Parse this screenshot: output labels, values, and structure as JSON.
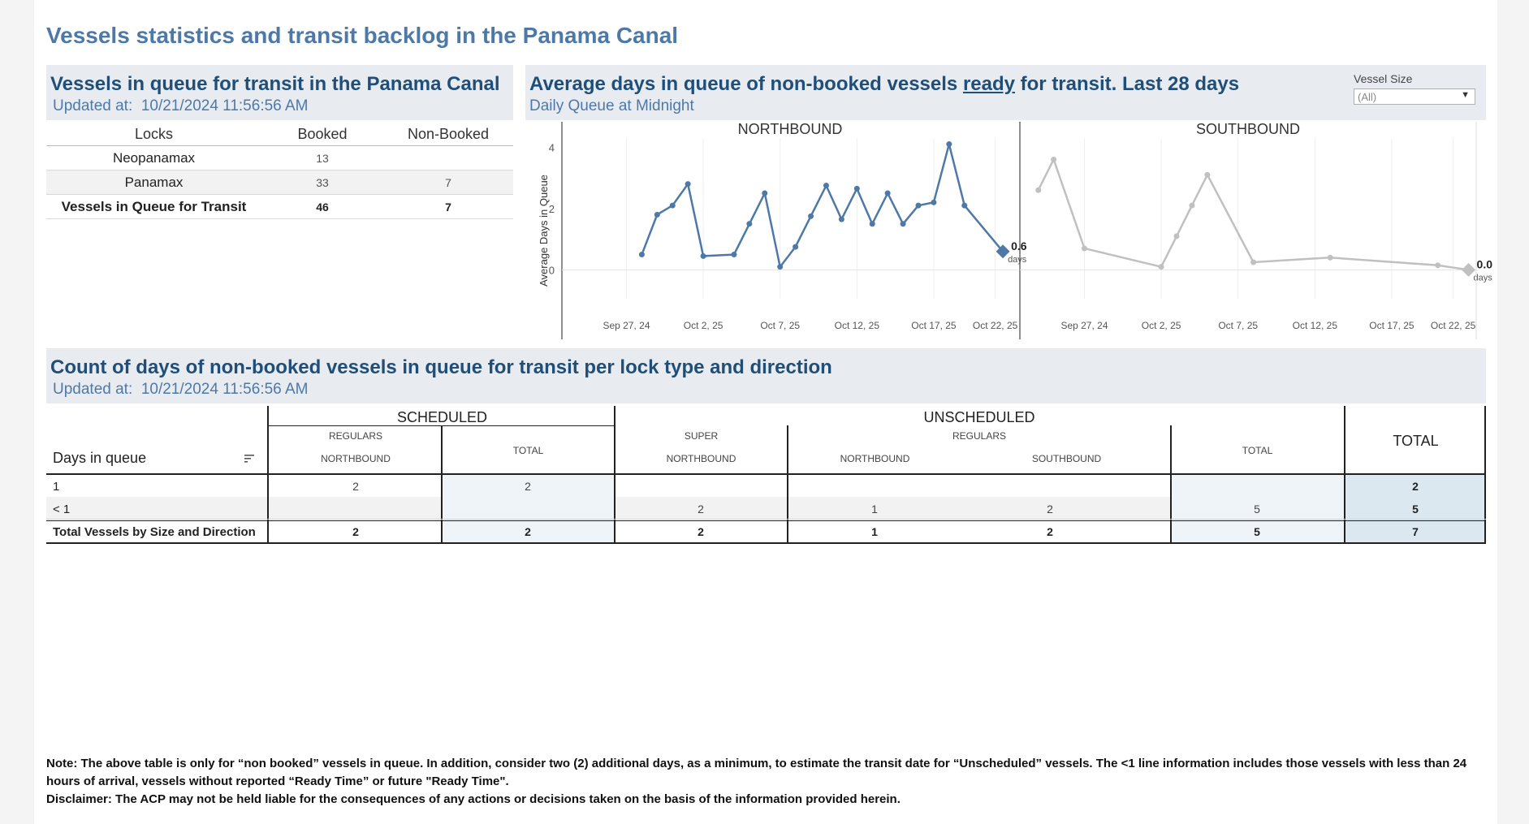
{
  "page_title": "Vessels statistics and transit backlog in the Panama Canal",
  "queue_panel": {
    "title": "Vessels in queue for transit in the Panama Canal",
    "updated_label": "Updated at:",
    "updated_value": "10/21/2024 11:56:56 AM",
    "columns": [
      "Locks",
      "Booked",
      "Non-Booked"
    ],
    "rows": [
      {
        "lock": "Neopanamax",
        "booked": "13",
        "non_booked": ""
      },
      {
        "lock": "Panamax",
        "booked": "33",
        "non_booked": "7"
      }
    ],
    "total": {
      "label": "Vessels in Queue for Transit",
      "booked": "46",
      "non_booked": "7"
    }
  },
  "avg_panel": {
    "title_pre": "Average days in queue of non-booked vessels ",
    "title_link": "ready",
    "title_post": " for transit. Last 28 days",
    "subtitle": "Daily Queue at Midnight"
  },
  "filter": {
    "label": "Vessel Size",
    "value": "(All)",
    "caret": "▼"
  },
  "chart_data": {
    "type": "line",
    "ylabel": "Average Days in Queue",
    "yticks": [
      0,
      2,
      4
    ],
    "ylim": [
      -0.2,
      4.3
    ],
    "xlim": [
      -4.2,
      25.5
    ],
    "xtick_labels": [
      "Sep 27, 24",
      "Oct 2, 25",
      "Oct 7, 25",
      "Oct 12, 25",
      "Oct 17, 25",
      "Oct 22, 25"
    ],
    "xtick_positions": [
      0,
      5,
      10,
      15,
      20,
      24
    ],
    "panels": [
      {
        "name": "NORTHBOUND",
        "color": "#4e79a7",
        "points": [
          [
            1,
            0.5
          ],
          [
            2,
            1.8
          ],
          [
            3,
            2.1
          ],
          [
            4,
            2.8
          ],
          [
            5,
            0.45
          ],
          [
            7,
            0.5
          ],
          [
            8,
            1.5
          ],
          [
            9,
            2.5
          ],
          [
            10,
            0.1
          ],
          [
            11,
            0.75
          ],
          [
            12,
            1.75
          ],
          [
            13,
            2.75
          ],
          [
            14,
            1.65
          ],
          [
            15,
            2.65
          ],
          [
            16,
            1.5
          ],
          [
            17,
            2.5
          ],
          [
            18,
            1.5
          ],
          [
            19,
            2.1
          ],
          [
            20,
            2.2
          ],
          [
            21,
            4.1
          ],
          [
            22,
            2.1
          ],
          [
            24.5,
            0.6
          ]
        ],
        "last_label": "0.6",
        "last_unit": "days"
      },
      {
        "name": "SOUTHBOUND",
        "color": "#c0c0c0",
        "points": [
          [
            -3,
            2.6
          ],
          [
            -2,
            3.6
          ],
          [
            0,
            0.7
          ],
          [
            5,
            0.1
          ],
          [
            6,
            1.1
          ],
          [
            7,
            2.1
          ],
          [
            8,
            3.1
          ],
          [
            11,
            0.25
          ],
          [
            16,
            0.4
          ],
          [
            23,
            0.15
          ],
          [
            25,
            0.0
          ]
        ],
        "last_label": "0.0",
        "last_unit": "days"
      }
    ]
  },
  "count_panel": {
    "title": "Count of days of non-booked vessels in queue for transit per lock type and direction",
    "updated_label": "Updated at:",
    "updated_value": "10/21/2024 11:56:56 AM",
    "row_header": "Days in queue",
    "groups": {
      "scheduled": "SCHEDULED",
      "unscheduled": "UNSCHEDULED",
      "total": "TOTAL"
    },
    "subheaders": {
      "regulars": "REGULARS",
      "super": "SUPER",
      "regulars2": "REGULARS",
      "total": "TOTAL",
      "total2": "TOTAL",
      "northbound1": "NORTHBOUND",
      "northbound2": "NORTHBOUND",
      "northbound3": "NORTHBOUND",
      "southbound": "SOUTHBOUND"
    },
    "rows": [
      {
        "label": "1",
        "sched_reg_nb": "2",
        "sched_total": "2",
        "super_nb": "",
        "unsched_reg_nb": "",
        "unsched_reg_sb": "",
        "unsched_total": "",
        "total": "2"
      },
      {
        "label": "< 1",
        "sched_reg_nb": "",
        "sched_total": "",
        "super_nb": "2",
        "unsched_reg_nb": "1",
        "unsched_reg_sb": "2",
        "unsched_total": "5",
        "total": "5"
      }
    ],
    "total_row": {
      "label": "Total Vessels by Size and Direction",
      "sched_reg_nb": "2",
      "sched_total": "2",
      "super_nb": "2",
      "unsched_reg_nb": "1",
      "unsched_reg_sb": "2",
      "unsched_total": "5",
      "total": "7"
    }
  },
  "note": {
    "line1": "Note:  The above table is only for “non booked” vessels in queue. In addition, consider two (2) additional days, as a minimum, to estimate the transit date for “Unscheduled” vessels.  The <1 line information includes those vessels with less than 24 hours of arrival, vessels without reported “Ready Time” or future \"Ready Time\".",
    "line2": "Disclaimer: The ACP may not be held liable for the consequences of any actions or decisions taken on the basis of the information provided herein."
  }
}
